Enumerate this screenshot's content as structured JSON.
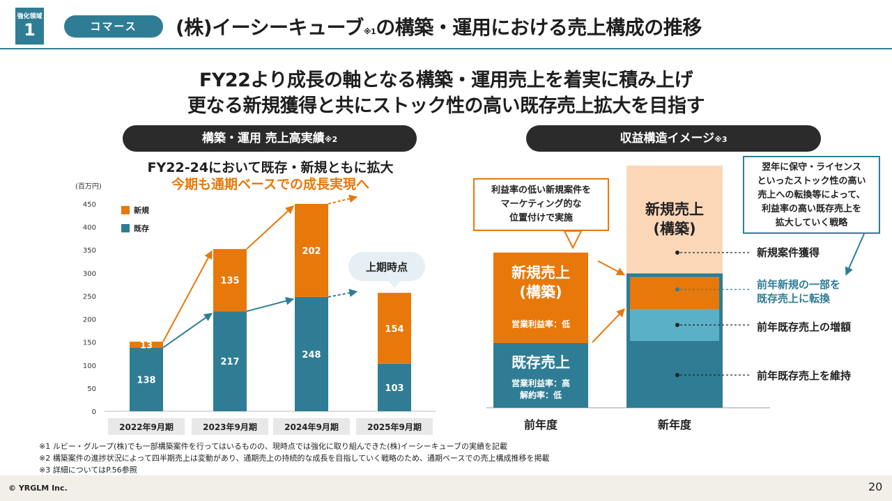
{
  "header": {
    "badge_small": "強化領域",
    "badge_num": "1",
    "category": "コマース",
    "title_main": "(株)イーシーキューブ",
    "title_note": "※1",
    "title_rest": "の構築・運用における売上構成の推移"
  },
  "headline": {
    "line1": "FY22より成長の軸となる構築・運用売上を着実に積み上げ",
    "line2": "更なる新規獲得と共にストック性の高い既存売上拡大を目指す"
  },
  "left": {
    "pill": "構築・運用 売上高実績",
    "pill_note": "※2",
    "sub1": "FY22-24において既存・新規ともに拡大",
    "sub2": "今期も通期ベースでの成長実現へ",
    "bubble": "上期時点"
  },
  "chart_data": {
    "type": "bar",
    "stacked": true,
    "ylabel": "(百万円)",
    "ylim": [
      0,
      450
    ],
    "yticks": [
      "0",
      "50",
      "100",
      "150",
      "200",
      "250",
      "300",
      "350",
      "400",
      "450"
    ],
    "categories": [
      "2022年9月期",
      "2023年9月期",
      "2024年9月期",
      "2025年9月期"
    ],
    "series": [
      {
        "name": "既存",
        "color": "#2f7d95",
        "values": [
          138,
          217,
          248,
          103
        ]
      },
      {
        "name": "新規",
        "color": "#e8780a",
        "values": [
          13,
          135,
          202,
          154
        ]
      }
    ],
    "legend": [
      {
        "name": "新規",
        "color": "#e8780a"
      },
      {
        "name": "既存",
        "color": "#2f7d95"
      }
    ],
    "legend_position": "top-left"
  },
  "right": {
    "pill": "収益構造イメージ",
    "pill_note": "※3",
    "callout_left": [
      "利益率の低い新規案件を",
      "マーケティング的な",
      "位置付けで実施"
    ],
    "callout_right": [
      "翌年に保守・ライセンス",
      "といったストック性の高い",
      "売上への転換等によって、",
      "利益率の高い既存売上を",
      "拡大していく戦略"
    ],
    "prev_new_title": [
      "新規売上",
      "(構築)"
    ],
    "prev_new_margin": "営業利益率：低",
    "prev_exist_title": "既存売上",
    "prev_exist_note": [
      "営業利益率：高",
      "解約率：低"
    ],
    "next_new_title": [
      "新規売上",
      "(構築)"
    ],
    "label_new_acq": "新規案件獲得",
    "label_convert": [
      "前年新規の一部を",
      "既存売上に転換"
    ],
    "label_increase": "前年既存売上の増額",
    "label_maintain": "前年既存売上を維持",
    "axis_prev": "前年度",
    "axis_next": "新年度"
  },
  "footnotes": [
    "※1 ルビー・グループ(株)でも一部構築案件を行ってはいるものの、現時点では強化に取り組んできた(株)イーシーキューブの実績を記載",
    "※2 構築案件の進捗状況によって四半期売上は変動があり、通期売上の持続的な成長を目指していく戦略のため、通期ベースでの売上構成推移を掲載",
    "※3 詳細についてはP.56参照"
  ],
  "footer": {
    "copyright": "© YRGLM Inc.",
    "page": "20"
  },
  "colors": {
    "teal": "#2f7d95",
    "orange": "#e8780a",
    "light_teal": "#5ab0c7",
    "peach": "#fbd7b8"
  }
}
